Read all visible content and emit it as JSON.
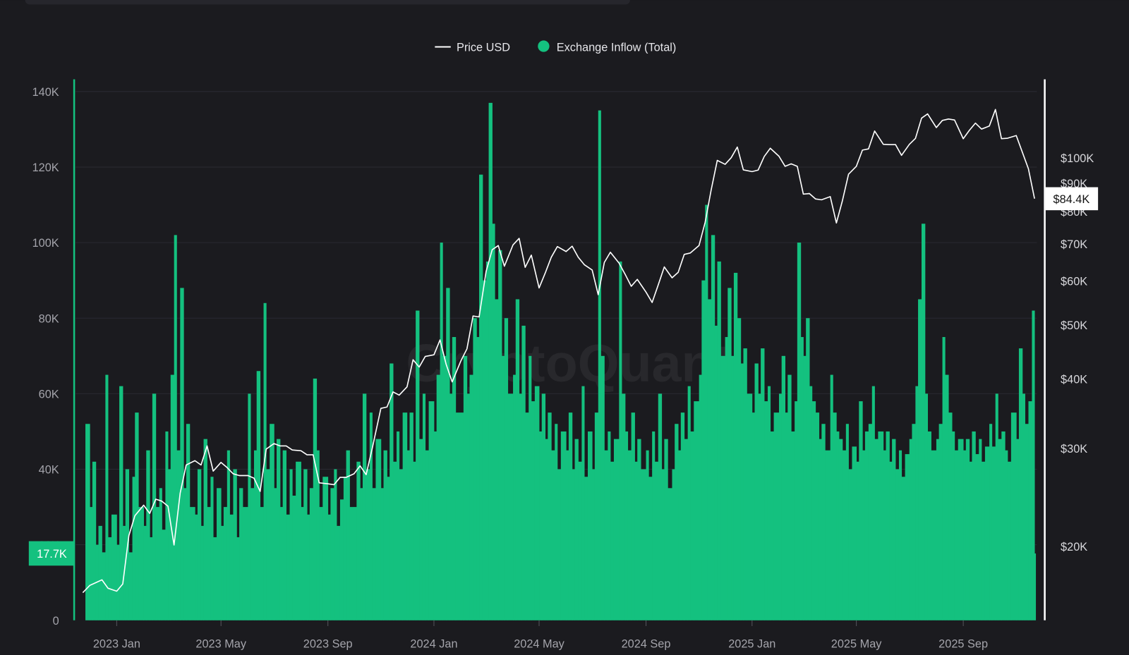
{
  "watermark": "CryptoQuant",
  "chart_data": {
    "type": "bar+line",
    "legend": {
      "placement": "top-center",
      "items": [
        {
          "label": "Price USD",
          "color": "#ffffff",
          "marker": "line"
        },
        {
          "label": "Exchange Inflow (Total)",
          "color": "#14c17f",
          "marker": "dot"
        }
      ]
    },
    "x_range": [
      "2022-11-23",
      "2025-11-23"
    ],
    "x_ticks": [
      "2023 Jan",
      "2023 May",
      "2023 Sep",
      "2024 Jan",
      "2024 May",
      "2024 Sep",
      "2025 Jan",
      "2025 May",
      "2025 Sep"
    ],
    "x_tick_dates": [
      "2023-01-01",
      "2023-05-01",
      "2023-09-01",
      "2024-01-01",
      "2024-05-01",
      "2024-09-01",
      "2025-01-01",
      "2025-05-01",
      "2025-09-01"
    ],
    "left_axis": {
      "ylim": [
        0,
        140000
      ],
      "ticks": [
        0,
        20000,
        40000,
        60000,
        80000,
        100000,
        120000,
        140000
      ],
      "tick_labels": [
        "0",
        "20K",
        "40K",
        "60K",
        "80K",
        "100K",
        "120K",
        "140K"
      ],
      "latest_label": "17.7K",
      "latest_value": 17700,
      "color": "#14c17f"
    },
    "right_axis": {
      "scale": "log",
      "ticks": [
        20000,
        30000,
        40000,
        50000,
        60000,
        70000,
        80000,
        90000,
        100000
      ],
      "tick_labels": [
        "$20K",
        "$30K",
        "$40K",
        "$50K",
        "$60K",
        "$70K",
        "$80K",
        "$90K",
        "$100K"
      ],
      "latest_label": "$84.4K",
      "latest_value": 84400,
      "color": "#ffffff"
    },
    "grid": true,
    "inflow": {
      "name": "Exchange Inflow (Total)",
      "unit": "K",
      "days_of_month": [
        1,
        4,
        8,
        11,
        15,
        19,
        22,
        26
      ],
      "months": {
        "2022-11": [
          null,
          null,
          null,
          null,
          null,
          null,
          null,
          52
        ],
        "2022-12": [
          30,
          42,
          20,
          25,
          18,
          65,
          22,
          28
        ],
        "2023-01": [
          20,
          62,
          25,
          40,
          18,
          38,
          55,
          30
        ],
        "2023-02": [
          25,
          45,
          22,
          60,
          30,
          35,
          24,
          50
        ],
        "2023-03": [
          40,
          65,
          102,
          45,
          88,
          35,
          52,
          30
        ],
        "2023-04": [
          28,
          40,
          25,
          48,
          30,
          38,
          22,
          35
        ],
        "2023-05": [
          25,
          30,
          45,
          28,
          40,
          22,
          35,
          30
        ],
        "2023-06": [
          60,
          35,
          45,
          66,
          30,
          84,
          40,
          52
        ],
        "2023-07": [
          35,
          48,
          30,
          45,
          28,
          40,
          33,
          42
        ],
        "2023-08": [
          30,
          40,
          28,
          35,
          64,
          45,
          30,
          38
        ],
        "2023-09": [
          28,
          35,
          40,
          25,
          32,
          38,
          45,
          30
        ],
        "2023-10": [
          30,
          42,
          35,
          60,
          40,
          55,
          35,
          48
        ],
        "2023-11": [
          35,
          45,
          38,
          68,
          42,
          50,
          40,
          55
        ],
        "2023-12": [
          45,
          55,
          42,
          82,
          48,
          60,
          45,
          58
        ],
        "2024-01": [
          50,
          65,
          100,
          70,
          88,
          60,
          75,
          55
        ],
        "2024-02": [
          55,
          70,
          60,
          65,
          80,
          75,
          118,
          90
        ],
        "2024-03": [
          95,
          137,
          105,
          85,
          98,
          70,
          80,
          60
        ],
        "2024-04": [
          65,
          85,
          60,
          78,
          55,
          70,
          58,
          62
        ],
        "2024-05": [
          50,
          60,
          48,
          55,
          45,
          52,
          40,
          50
        ],
        "2024-06": [
          45,
          55,
          40,
          48,
          42,
          62,
          38,
          50
        ],
        "2024-07": [
          40,
          55,
          135,
          70,
          45,
          50,
          42,
          48
        ],
        "2024-08": [
          95,
          60,
          50,
          45,
          55,
          42,
          48,
          40
        ],
        "2024-09": [
          45,
          38,
          50,
          42,
          60,
          40,
          48,
          35
        ],
        "2024-10": [
          40,
          52,
          45,
          55,
          48,
          62,
          50,
          58
        ],
        "2024-11": [
          65,
          90,
          110,
          85,
          102,
          78,
          95,
          70
        ],
        "2024-12": [
          75,
          88,
          70,
          92,
          80,
          68,
          72,
          60
        ],
        "2025-01": [
          55,
          68,
          60,
          72,
          58,
          62,
          50,
          55
        ],
        "2025-02": [
          60,
          70,
          55,
          65,
          50,
          58,
          100,
          75
        ],
        "2025-03": [
          70,
          80,
          62,
          58,
          55,
          48,
          52,
          45
        ],
        "2025-04": [
          65,
          55,
          50,
          48,
          45,
          52,
          40,
          46
        ],
        "2025-05": [
          42,
          58,
          45,
          50,
          52,
          62,
          48,
          50
        ],
        "2025-06": [
          45,
          50,
          42,
          48,
          40,
          45,
          38,
          44
        ],
        "2025-07": [
          48,
          52,
          62,
          85,
          105,
          60,
          50,
          45
        ],
        "2025-08": [
          48,
          52,
          75,
          65,
          55,
          50,
          45,
          48
        ],
        "2025-09": [
          45,
          48,
          42,
          50,
          44,
          48,
          42,
          46
        ],
        "2025-10": [
          52,
          46,
          60,
          48,
          50,
          45,
          42,
          55
        ],
        "2025-11": [
          48,
          72,
          60,
          52,
          58,
          82,
          17.7,
          null
        ]
      }
    },
    "price": {
      "name": "Price USD",
      "unit": "K USD",
      "days_of_month": [
        1,
        8,
        15,
        22
      ],
      "months": {
        "2022-11": [
          null,
          null,
          null,
          16.5
        ],
        "2022-12": [
          17.0,
          17.2,
          17.4,
          16.8
        ],
        "2023-01": [
          16.6,
          17.1,
          20.9,
          22.7
        ],
        "2023-02": [
          23.7,
          22.9,
          24.3,
          24.1
        ],
        "2023-03": [
          23.6,
          20.1,
          24.9,
          28.0
        ],
        "2023-04": [
          28.5,
          28.0,
          30.3,
          27.3
        ],
        "2023-05": [
          28.3,
          27.7,
          27.0,
          26.8
        ],
        "2023-06": [
          26.8,
          26.5,
          25.1,
          29.9
        ],
        "2023-07": [
          30.6,
          30.3,
          30.3,
          29.8
        ],
        "2023-08": [
          29.7,
          29.2,
          29.2,
          26.0
        ],
        "2023-09": [
          25.9,
          25.8,
          26.6,
          26.6
        ],
        "2023-10": [
          27.0,
          27.9,
          26.9,
          30.0
        ],
        "2023-11": [
          35.4,
          35.6,
          37.9,
          37.4
        ],
        "2023-12": [
          38.7,
          43.3,
          42.0,
          43.9
        ],
        "2024-01": [
          44.2,
          47.0,
          42.5,
          39.5
        ],
        "2024-02": [
          43.1,
          45.3,
          51.9,
          51.7
        ],
        "2024-03": [
          62.4,
          68.3,
          69.5,
          63.8
        ],
        "2024-04": [
          69.7,
          71.6,
          63.5,
          66.8
        ],
        "2024-05": [
          58.3,
          62.0,
          66.2,
          69.2
        ],
        "2024-06": [
          67.8,
          69.3,
          66.2,
          64.2
        ],
        "2024-07": [
          62.8,
          56.7,
          64.8,
          67.6
        ],
        "2024-08": [
          64.6,
          61.7,
          58.7,
          60.4
        ],
        "2024-09": [
          57.3,
          54.9,
          59.0,
          63.6
        ],
        "2024-10": [
          60.8,
          62.2,
          67.0,
          67.4
        ],
        "2024-11": [
          69.5,
          76.5,
          87.5,
          98.9
        ],
        "2024-12": [
          97.3,
          100.0,
          104.5,
          95.1
        ],
        "2025-01": [
          94.4,
          95.0,
          100.5,
          104.0
        ],
        "2025-02": [
          100.6,
          96.5,
          97.5,
          96.5
        ],
        "2025-03": [
          86.0,
          86.2,
          84.3,
          84.0
        ],
        "2025-04": [
          85.1,
          76.3,
          83.7,
          93.4
        ],
        "2025-05": [
          96.5,
          103.2,
          103.7,
          111.7
        ],
        "2025-06": [
          105.7,
          105.6,
          105.6,
          101.0
        ],
        "2025-07": [
          105.7,
          108.3,
          117.8,
          119.9
        ],
        "2025-08": [
          113.3,
          116.7,
          117.4,
          116.9
        ],
        "2025-09": [
          108.2,
          112.0,
          115.4,
          112.6
        ],
        "2025-10": [
          114.0,
          122.1,
          108.2,
          108.4
        ],
        "2025-11": [
          109.6,
          102.3,
          95.5,
          84.4
        ]
      }
    }
  }
}
